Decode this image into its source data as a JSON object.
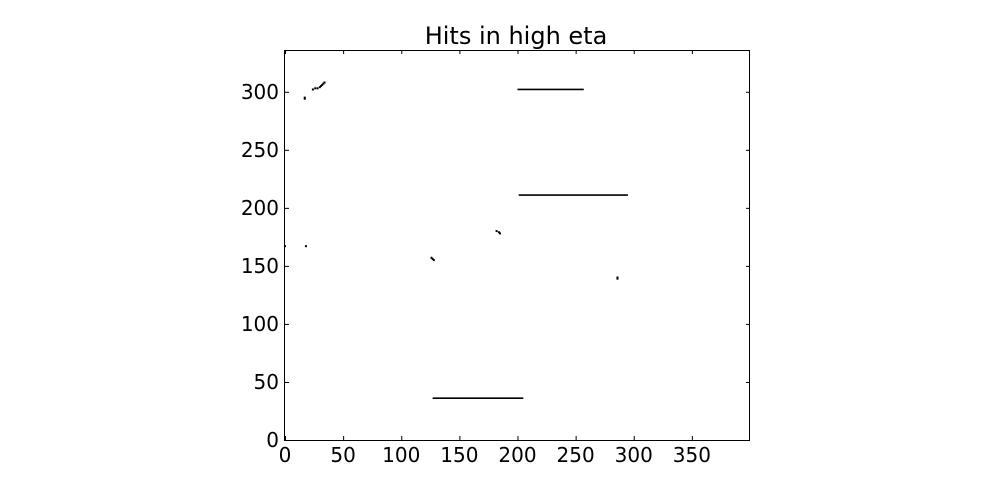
{
  "chart_data": {
    "type": "scatter",
    "title": "Hits in high eta",
    "xlabel": "",
    "ylabel": "",
    "xlim": [
      0,
      400
    ],
    "ylim": [
      0,
      336
    ],
    "xticks": [
      0,
      50,
      100,
      150,
      200,
      250,
      300,
      350
    ],
    "yticks": [
      0,
      50,
      100,
      150,
      200,
      250,
      300
    ],
    "grid": false,
    "point_color": "#000000",
    "series": [
      {
        "segments": [
          {
            "x": [
              200,
              257
            ],
            "y": [
              302,
              302
            ]
          },
          {
            "x": [
              201,
              295
            ],
            "y": [
              211,
              211
            ]
          },
          {
            "x": [
              127,
              205
            ],
            "y": [
              36,
              36
            ]
          }
        ],
        "points": [
          [
            17,
            294
          ],
          [
            17,
            295
          ],
          [
            24,
            302
          ],
          [
            26,
            303
          ],
          [
            28,
            303
          ],
          [
            30,
            304
          ],
          [
            31,
            305
          ],
          [
            32,
            306
          ],
          [
            33,
            307
          ],
          [
            34,
            308
          ],
          [
            182,
            180
          ],
          [
            184,
            179
          ],
          [
            185,
            178
          ],
          [
            126,
            157
          ],
          [
            127,
            156
          ],
          [
            128,
            155
          ],
          [
            286,
            139
          ],
          [
            286,
            140
          ],
          [
            0,
            167
          ],
          [
            18,
            167
          ]
        ]
      }
    ]
  }
}
